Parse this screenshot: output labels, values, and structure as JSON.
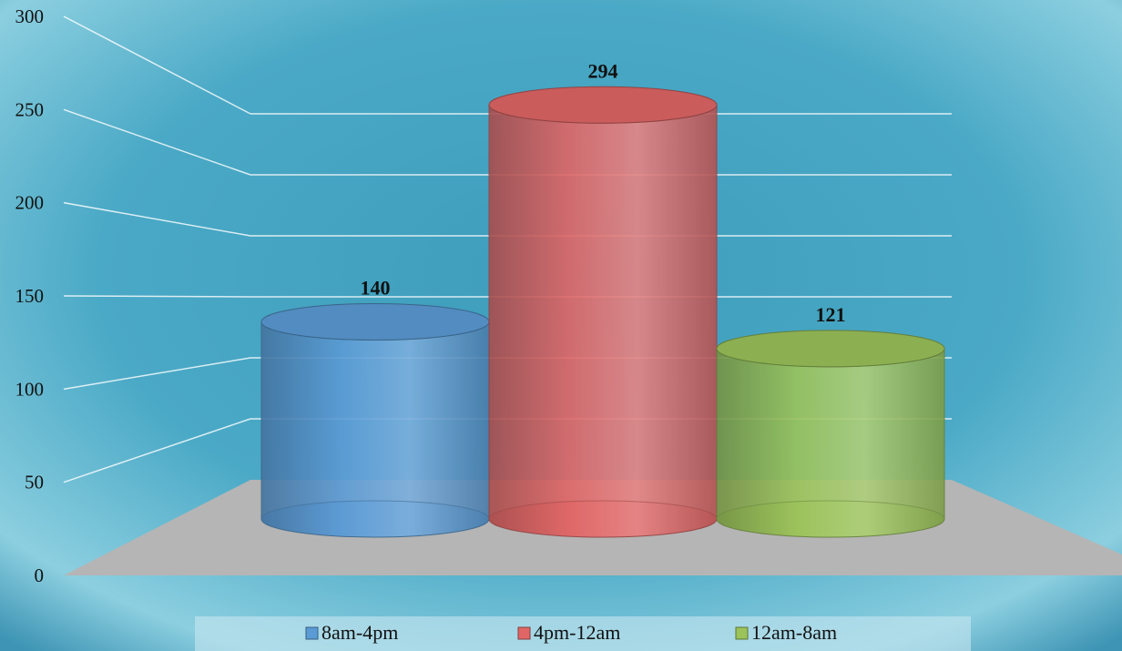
{
  "chart_data": {
    "type": "bar",
    "style": "3d-cylinder",
    "categories": [
      ""
    ],
    "series": [
      {
        "name": "8am-4pm",
        "values": [
          140
        ],
        "color": "#5b9bd5"
      },
      {
        "name": "4pm-12am",
        "values": [
          294
        ],
        "color": "#e06666"
      },
      {
        "name": "12am-8am",
        "values": [
          121
        ],
        "color": "#9bc35a"
      }
    ],
    "ylim": [
      0,
      300
    ],
    "yticks": [
      0,
      50,
      100,
      150,
      200,
      250,
      300
    ],
    "grid": true,
    "data_labels": true,
    "legend": "bottom",
    "background": "#4aa8c4",
    "floor_color": "#b5b5b5"
  }
}
